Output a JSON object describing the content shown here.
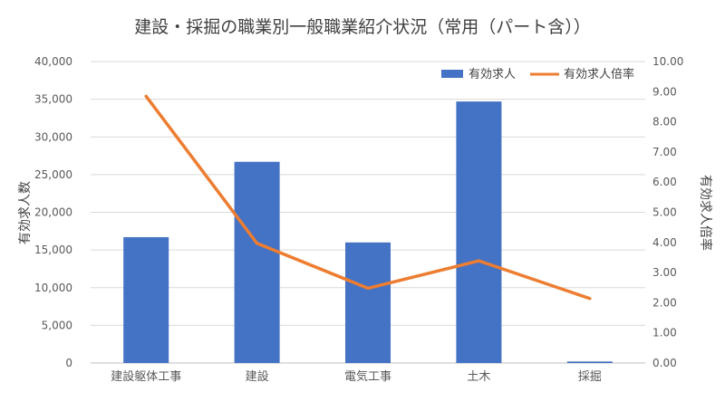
{
  "chart_data": {
    "type": "bar",
    "title": "建設・採掘の職業別一般職業紹介状況（常用（パート含））",
    "categories": [
      "建設躯体工事",
      "建設",
      "電気工事",
      "土木",
      "採掘"
    ],
    "series": [
      {
        "name": "有効求人",
        "type": "bar",
        "axis": "left",
        "color": "#4472C4",
        "values": [
          16700,
          26700,
          16000,
          34700,
          200
        ]
      },
      {
        "name": "有効求人倍率",
        "type": "line",
        "axis": "right",
        "color": "#ED7D31",
        "values": [
          8.85,
          3.97,
          2.48,
          3.39,
          2.14
        ]
      }
    ],
    "ylabel": "有効求人数",
    "y2label": "有効求人倍率",
    "ylim": [
      0,
      40000
    ],
    "y2lim": [
      0,
      10
    ],
    "yticks": [
      "0",
      "5,000",
      "10,000",
      "15,000",
      "20,000",
      "25,000",
      "30,000",
      "35,000",
      "40,000"
    ],
    "y2ticks": [
      "0.00",
      "1.00",
      "2.00",
      "3.00",
      "4.00",
      "5.00",
      "6.00",
      "7.00",
      "8.00",
      "9.00",
      "10.00"
    ],
    "grid": true,
    "legend_position": "top-right"
  }
}
